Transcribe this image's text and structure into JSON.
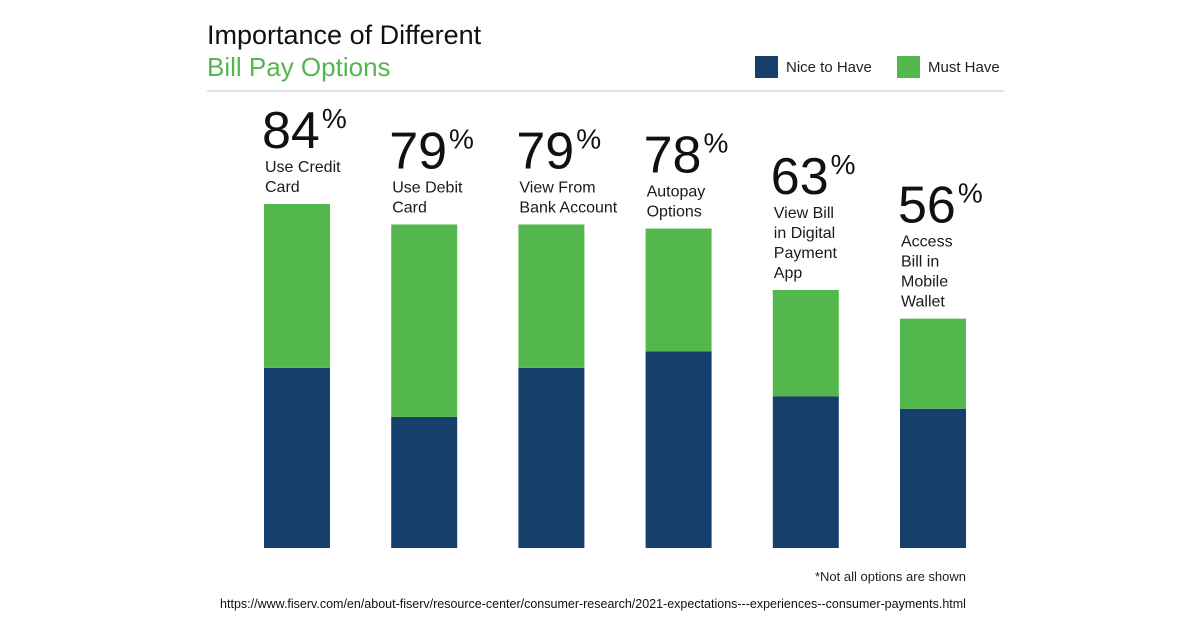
{
  "chart_data": {
    "type": "bar",
    "stacked": true,
    "title": "Importance of Different",
    "subtitle": "Bill Pay Options",
    "categories": [
      "Use Credit Card",
      "Use Debit Card",
      "View From Bank Account",
      "Autopay Options",
      "View Bill in Digital Payment App",
      "Access Bill in Mobile Wallet"
    ],
    "category_lines": [
      [
        "Use Credit",
        "Card"
      ],
      [
        "Use Debit",
        "Card"
      ],
      [
        "View From",
        "Bank Account"
      ],
      [
        "Autopay",
        "Options"
      ],
      [
        "View Bill",
        "in Digital",
        "Payment",
        "App"
      ],
      [
        "Access",
        "Bill in",
        "Mobile",
        "Wallet"
      ]
    ],
    "totals": [
      84,
      79,
      79,
      78,
      63,
      56
    ],
    "total_labels": [
      "84",
      "79",
      "79",
      "78",
      "63",
      "56"
    ],
    "percent_sign": "%",
    "series": [
      {
        "name": "Nice to Have",
        "color": "#173f6b",
        "values": [
          44,
          32,
          44,
          48,
          37,
          34
        ]
      },
      {
        "name": "Must Have",
        "color": "#54b74e",
        "values": [
          40,
          47,
          35,
          30,
          26,
          22
        ]
      }
    ],
    "ylim": [
      0,
      84
    ],
    "legend_position": "top-right",
    "grid": false,
    "footnote": "*Not all options are shown"
  },
  "source_url": "https://www.fiserv.com/en/about-fiserv/resource-center/consumer-research/2021-expectations---experiences--consumer-payments.html",
  "colors": {
    "title": "#111111",
    "subtitle": "#54b74e",
    "divider": "#d9d9d9"
  }
}
